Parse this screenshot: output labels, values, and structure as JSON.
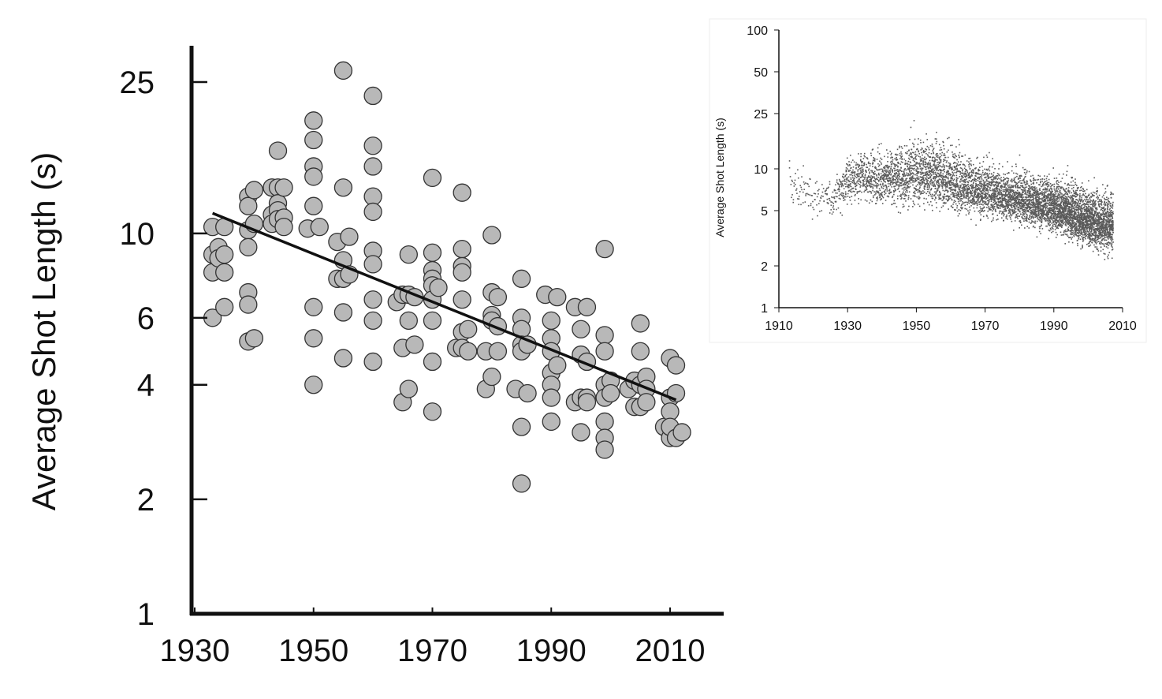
{
  "colors": {
    "axis": "#111111",
    "marker_fill": "#b8b8b8",
    "marker_stroke": "#333333",
    "trend": "#111111",
    "inset_points": "#5a5a5a"
  },
  "chart_data": [
    {
      "type": "scatter",
      "title": "",
      "xlabel": "",
      "ylabel": "Average Shot Length (s)",
      "y_scale": "log",
      "xlim": [
        1929,
        2020
      ],
      "ylim": [
        1,
        30
      ],
      "x_ticks": [
        1930,
        1950,
        1970,
        1990,
        2010
      ],
      "x_tick_labels": [
        "1930",
        "1950",
        "1970",
        "1990",
        "2010"
      ],
      "y_ticks": [
        1,
        2,
        4,
        6,
        10,
        25
      ],
      "y_tick_labels": [
        "1",
        "2",
        "4",
        "6",
        "10",
        "25"
      ],
      "grid": false,
      "trend_line": {
        "x": [
          1933,
          2011
        ],
        "y": [
          11.3,
          3.65
        ]
      },
      "series": [
        {
          "points": [
            [
              1933,
              10.4
            ],
            [
              1933,
              8.8
            ],
            [
              1933,
              7.9
            ],
            [
              1933,
              6.0
            ],
            [
              1934,
              9.2
            ],
            [
              1934,
              8.6
            ],
            [
              1935,
              10.4
            ],
            [
              1935,
              8.8
            ],
            [
              1935,
              7.9
            ],
            [
              1935,
              6.4
            ],
            [
              1939,
              12.5
            ],
            [
              1939,
              11.8
            ],
            [
              1939,
              10.2
            ],
            [
              1939,
              9.2
            ],
            [
              1939,
              7.0
            ],
            [
              1939,
              6.5
            ],
            [
              1939,
              5.2
            ],
            [
              1940,
              13.0
            ],
            [
              1940,
              10.6
            ],
            [
              1940,
              5.3
            ],
            [
              1943,
              13.2
            ],
            [
              1943,
              11.2
            ],
            [
              1943,
              10.6
            ],
            [
              1944,
              16.5
            ],
            [
              1944,
              13.2
            ],
            [
              1944,
              12.0
            ],
            [
              1944,
              11.5
            ],
            [
              1944,
              10.9
            ],
            [
              1945,
              13.2
            ],
            [
              1945,
              11.0
            ],
            [
              1945,
              10.4
            ],
            [
              1949,
              10.3
            ],
            [
              1950,
              19.8
            ],
            [
              1950,
              17.6
            ],
            [
              1950,
              15.0
            ],
            [
              1950,
              14.1
            ],
            [
              1950,
              11.8
            ],
            [
              1950,
              6.4
            ],
            [
              1950,
              5.3
            ],
            [
              1950,
              4.0
            ],
            [
              1951,
              10.4
            ],
            [
              1954,
              9.5
            ],
            [
              1954,
              7.6
            ],
            [
              1955,
              26.8
            ],
            [
              1955,
              13.2
            ],
            [
              1955,
              8.5
            ],
            [
              1955,
              7.6
            ],
            [
              1955,
              6.2
            ],
            [
              1955,
              4.7
            ],
            [
              1956,
              9.8
            ],
            [
              1956,
              7.8
            ],
            [
              1960,
              23.0
            ],
            [
              1960,
              17.0
            ],
            [
              1960,
              15.0
            ],
            [
              1960,
              12.5
            ],
            [
              1960,
              11.4
            ],
            [
              1960,
              9.0
            ],
            [
              1960,
              8.3
            ],
            [
              1960,
              6.7
            ],
            [
              1960,
              5.9
            ],
            [
              1960,
              4.6
            ],
            [
              1964,
              6.6
            ],
            [
              1965,
              6.9
            ],
            [
              1965,
              5.0
            ],
            [
              1965,
              3.6
            ],
            [
              1966,
              8.8
            ],
            [
              1966,
              6.9
            ],
            [
              1966,
              5.9
            ],
            [
              1966,
              3.9
            ],
            [
              1967,
              6.8
            ],
            [
              1967,
              5.1
            ],
            [
              1970,
              14.0
            ],
            [
              1970,
              8.9
            ],
            [
              1970,
              8.0
            ],
            [
              1970,
              7.6
            ],
            [
              1970,
              7.3
            ],
            [
              1970,
              6.7
            ],
            [
              1970,
              5.9
            ],
            [
              1970,
              4.6
            ],
            [
              1970,
              3.4
            ],
            [
              1971,
              7.2
            ],
            [
              1974,
              5.0
            ],
            [
              1975,
              12.8
            ],
            [
              1975,
              9.1
            ],
            [
              1975,
              8.2
            ],
            [
              1975,
              7.9
            ],
            [
              1975,
              6.7
            ],
            [
              1975,
              5.5
            ],
            [
              1975,
              5.0
            ],
            [
              1976,
              5.6
            ],
            [
              1976,
              4.9
            ],
            [
              1979,
              4.9
            ],
            [
              1979,
              3.9
            ],
            [
              1980,
              9.9
            ],
            [
              1980,
              7.0
            ],
            [
              1980,
              6.1
            ],
            [
              1980,
              5.9
            ],
            [
              1980,
              4.2
            ],
            [
              1981,
              6.8
            ],
            [
              1981,
              5.7
            ],
            [
              1981,
              4.9
            ],
            [
              1984,
              3.9
            ],
            [
              1985,
              7.6
            ],
            [
              1985,
              6.0
            ],
            [
              1985,
              5.6
            ],
            [
              1985,
              5.1
            ],
            [
              1985,
              4.9
            ],
            [
              1985,
              3.1
            ],
            [
              1985,
              2.2
            ],
            [
              1986,
              5.1
            ],
            [
              1986,
              3.8
            ],
            [
              1989,
              6.9
            ],
            [
              1990,
              5.9
            ],
            [
              1990,
              5.3
            ],
            [
              1990,
              4.9
            ],
            [
              1990,
              4.3
            ],
            [
              1990,
              4.0
            ],
            [
              1990,
              3.7
            ],
            [
              1990,
              3.2
            ],
            [
              1991,
              6.8
            ],
            [
              1991,
              4.5
            ],
            [
              1994,
              6.4
            ],
            [
              1994,
              3.6
            ],
            [
              1995,
              5.6
            ],
            [
              1995,
              4.8
            ],
            [
              1995,
              3.7
            ],
            [
              1995,
              3.0
            ],
            [
              1996,
              6.4
            ],
            [
              1996,
              4.6
            ],
            [
              1996,
              3.7
            ],
            [
              1996,
              3.6
            ],
            [
              1999,
              9.1
            ],
            [
              1999,
              5.4
            ],
            [
              1999,
              4.9
            ],
            [
              1999,
              4.0
            ],
            [
              1999,
              3.7
            ],
            [
              1999,
              3.2
            ],
            [
              1999,
              2.9
            ],
            [
              1999,
              2.7
            ],
            [
              2000,
              4.1
            ],
            [
              2000,
              3.8
            ],
            [
              2003,
              3.9
            ],
            [
              2004,
              4.1
            ],
            [
              2004,
              3.5
            ],
            [
              2005,
              5.8
            ],
            [
              2005,
              4.9
            ],
            [
              2005,
              4.0
            ],
            [
              2005,
              3.5
            ],
            [
              2006,
              4.2
            ],
            [
              2006,
              3.9
            ],
            [
              2006,
              3.6
            ],
            [
              2009,
              3.1
            ],
            [
              2010,
              4.7
            ],
            [
              2010,
              3.7
            ],
            [
              2010,
              3.4
            ],
            [
              2010,
              2.9
            ],
            [
              2010,
              3.1
            ],
            [
              2011,
              4.5
            ],
            [
              2011,
              3.8
            ],
            [
              2011,
              2.9
            ],
            [
              2012,
              3.0
            ]
          ]
        }
      ]
    },
    {
      "type": "scatter",
      "title": "",
      "xlabel": "",
      "ylabel": "Average Shot Length (s)",
      "y_scale": "log",
      "xlim": [
        1910,
        2010
      ],
      "ylim": [
        1,
        100
      ],
      "x_ticks": [
        1910,
        1930,
        1950,
        1970,
        1990,
        2010
      ],
      "x_tick_labels": [
        "1910",
        "1930",
        "1950",
        "1970",
        "1990",
        "2010"
      ],
      "y_ticks": [
        1,
        2,
        5,
        10,
        25,
        50,
        100
      ],
      "y_tick_labels": [
        "1",
        "2",
        "5",
        "10",
        "25",
        "50",
        "100"
      ],
      "grid": false,
      "density_profile": {
        "year": [
          1913,
          1920,
          1925,
          1930,
          1940,
          1950,
          1955,
          1960,
          1970,
          1980,
          1990,
          1995,
          2000,
          2005
        ],
        "median": [
          7.5,
          6.5,
          6.0,
          8.5,
          8.5,
          9.0,
          9.2,
          8.0,
          6.8,
          6.0,
          5.3,
          4.8,
          4.3,
          4.0
        ],
        "p05": [
          5.0,
          4.5,
          4.5,
          5.5,
          5.5,
          5.5,
          5.5,
          5.0,
          4.5,
          4.0,
          3.5,
          3.0,
          2.7,
          2.5
        ],
        "p95": [
          13.0,
          9.5,
          8.0,
          13.0,
          14.0,
          18.0,
          18.0,
          15.0,
          11.5,
          10.0,
          9.0,
          8.5,
          7.5,
          7.0
        ],
        "relative_density": [
          0.05,
          0.06,
          0.08,
          0.25,
          0.35,
          0.45,
          0.5,
          0.5,
          0.55,
          0.65,
          0.85,
          0.95,
          1.0,
          0.9
        ]
      }
    }
  ]
}
